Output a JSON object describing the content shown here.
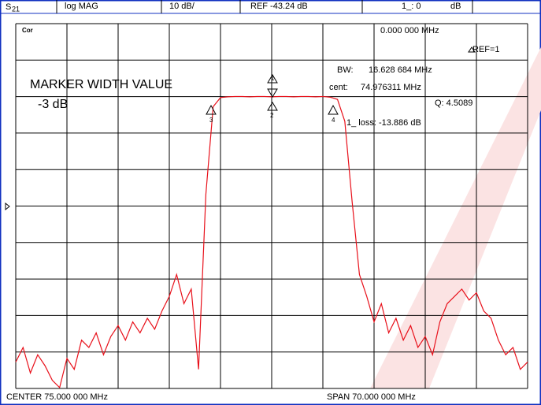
{
  "chart_data": {
    "type": "line",
    "header": {
      "param": "S",
      "param_sub": "21",
      "format": "log MAG",
      "scale": "10 dB/",
      "ref": "REF -43.24 dB",
      "marker_value": "1_: 0",
      "marker_unit": "dB"
    },
    "status_icon": "Cor",
    "marker_stimulus": "0.000 000 MHz",
    "ref_marker": "REF=1",
    "bw_label": "BW:",
    "bw_value": "16.628 684 MHz",
    "cent_label": "cent:",
    "cent_value": "74.976311 MHz",
    "q_value": "Q: 4.5089",
    "loss_value": "1_ loss: -13.886 dB",
    "annotation_title": "MARKER WIDTH VALUE",
    "annotation_value": "-3 dB",
    "marker_labels": [
      "1",
      "2",
      "3",
      "4"
    ],
    "center_label": "CENTER  75.000 000 MHz",
    "span_label": "SPAN  70.000 000 MHz",
    "color": "#e8101a",
    "xlim": [
      40,
      110
    ],
    "ylim": [
      -93.24,
      6.76
    ],
    "grid": true,
    "x": [
      40,
      41,
      42,
      43,
      44,
      45,
      46,
      47,
      48,
      49,
      50,
      51,
      52,
      53,
      54,
      55,
      56,
      57,
      58,
      59,
      60,
      61,
      62,
      63,
      64,
      65,
      66,
      67,
      68,
      69,
      70,
      71,
      72,
      73,
      74,
      75,
      76,
      77,
      78,
      79,
      80,
      81,
      82,
      83,
      84,
      85,
      86,
      87,
      88,
      89,
      90,
      91,
      92,
      93,
      94,
      95,
      96,
      97,
      98,
      99,
      100,
      101,
      102,
      103,
      104,
      105,
      106,
      107,
      108,
      109,
      110
    ],
    "values": [
      -86,
      -82,
      -89,
      -84,
      -87,
      -91,
      -93,
      -85,
      -88,
      -80,
      -82,
      -78,
      -84,
      -79,
      -76,
      -80,
      -75,
      -78,
      -74,
      -77,
      -72,
      -68,
      -62,
      -70,
      -66,
      -88,
      -40,
      -16,
      -13.5,
      -13.3,
      -13.2,
      -13.2,
      -13.3,
      -13.2,
      -13.2,
      -13.3,
      -13.2,
      -13.2,
      -13.3,
      -13.2,
      -13.2,
      -13.3,
      -13.2,
      -13.4,
      -14,
      -20,
      -42,
      -62,
      -68,
      -75,
      -70,
      -78,
      -74,
      -80,
      -76,
      -82,
      -79,
      -84,
      -75,
      -70,
      -68,
      -66,
      -69,
      -67,
      -72,
      -74,
      -80,
      -84,
      -82,
      -88,
      -86
    ]
  }
}
